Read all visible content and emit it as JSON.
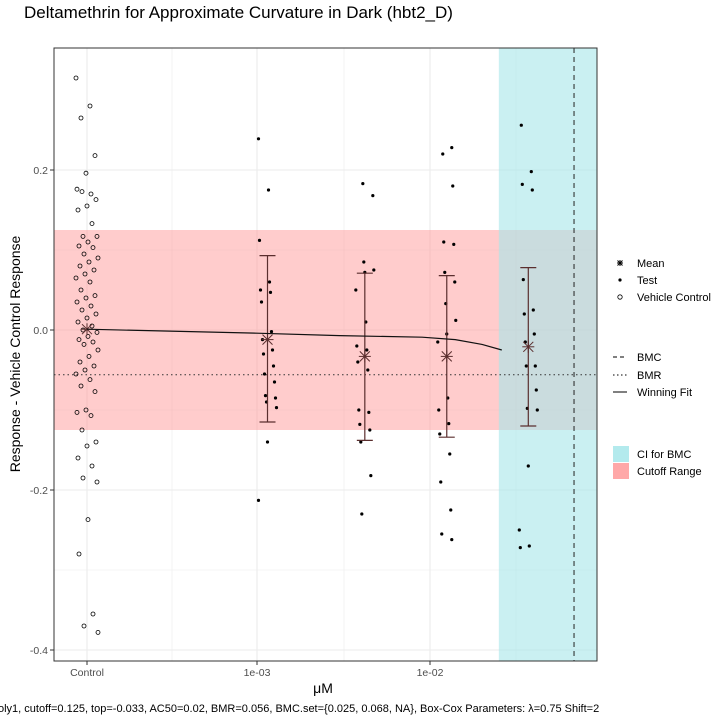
{
  "chart_data": {
    "type": "scatter",
    "title": "Deltamethrin for Approximate Curvature in Dark (hbt2_D)",
    "xlabel": "μM",
    "ylabel": "Response - Vehicle Control Response",
    "caption": "oly1, cutoff=0.125, top=-0.033, AC50=0.02, BMR=0.056, BMC.set={0.025, 0.068, NA}, Box-Cox Parameters: λ=0.75 Shift=2",
    "x_scale": "log10",
    "x_ticks": [
      {
        "label": "Control",
        "value": null
      },
      {
        "label": "1e-03",
        "value": 0.001
      },
      {
        "label": "1e-02",
        "value": 0.01
      }
    ],
    "ylim": [
      -0.41,
      0.35
    ],
    "y_ticks": [
      {
        "label": "0.2",
        "value": 0.2
      },
      {
        "label": "0.0",
        "value": 0.0
      },
      {
        "label": "-0.2",
        "value": -0.2
      },
      {
        "label": "-0.4",
        "value": -0.4
      }
    ],
    "grid": true,
    "cutoff_range": [
      -0.125,
      0.125
    ],
    "bmr_line": -0.056,
    "bmc": 0.068,
    "ci_bmc": [
      0.025,
      0.068
    ],
    "vehicle_control": [
      0.315,
      0.28,
      0.265,
      0.218,
      0.196,
      0.176,
      0.17,
      0.173,
      0.163,
      0.155,
      0.15,
      0.133,
      0.117,
      0.117,
      0.11,
      0.105,
      0.103,
      0.095,
      0.09,
      0.085,
      0.08,
      0.075,
      0.07,
      0.065,
      0.06,
      0.05,
      0.043,
      0.04,
      0.035,
      0.03,
      0.025,
      0.02,
      0.015,
      0.01,
      0.005,
      0.0,
      -0.003,
      -0.008,
      -0.012,
      -0.015,
      -0.018,
      -0.025,
      -0.033,
      -0.04,
      -0.045,
      -0.05,
      -0.055,
      -0.062,
      -0.07,
      -0.077,
      -0.1,
      -0.103,
      -0.107,
      -0.125,
      -0.14,
      -0.145,
      -0.16,
      -0.17,
      -0.185,
      -0.19,
      -0.237,
      -0.28,
      -0.355,
      -0.37,
      -0.378
    ],
    "test_groups": [
      {
        "x": 0.00115,
        "points": [
          0.239,
          0.175,
          0.112,
          0.06,
          0.05,
          0.047,
          0.035,
          -0.002,
          -0.012,
          -0.025,
          -0.03,
          -0.045,
          -0.055,
          -0.065,
          -0.082,
          -0.085,
          -0.09,
          -0.097,
          -0.14,
          -0.213
        ],
        "mean": -0.012,
        "ci": [
          -0.115,
          0.093
        ]
      },
      {
        "x": 0.0042,
        "points": [
          0.183,
          0.168,
          0.085,
          0.075,
          0.072,
          0.05,
          0.01,
          -0.02,
          -0.025,
          -0.04,
          -0.05,
          -0.1,
          -0.103,
          -0.118,
          -0.125,
          -0.14,
          -0.182,
          -0.23
        ],
        "mean": -0.033,
        "ci": [
          -0.138,
          0.071
        ]
      },
      {
        "x": 0.0125,
        "points": [
          0.228,
          0.22,
          0.18,
          0.11,
          0.107,
          0.072,
          0.06,
          0.033,
          0.012,
          -0.005,
          -0.015,
          -0.085,
          -0.1,
          -0.117,
          -0.13,
          -0.155,
          -0.19,
          -0.225,
          -0.255,
          -0.262
        ],
        "mean": -0.033,
        "ci": [
          -0.134,
          0.068
        ]
      },
      {
        "x": 0.037,
        "points": [
          0.256,
          0.198,
          0.182,
          0.175,
          0.063,
          0.025,
          0.02,
          -0.005,
          -0.015,
          -0.045,
          -0.045,
          -0.075,
          -0.098,
          -0.1,
          -0.17,
          -0.25,
          -0.27,
          -0.272
        ],
        "mean": -0.021,
        "ci": [
          -0.12,
          0.078
        ]
      }
    ],
    "winning_fit": [
      {
        "x": "control",
        "y": 0.001
      },
      {
        "x": 0.001,
        "y": -0.004
      },
      {
        "x": 0.003,
        "y": -0.007
      },
      {
        "x": 0.009,
        "y": -0.009
      },
      {
        "x": 0.014,
        "y": -0.012
      },
      {
        "x": 0.02,
        "y": -0.018
      },
      {
        "x": 0.026,
        "y": -0.025
      }
    ],
    "legend": {
      "placement": "right",
      "symbols": [
        {
          "label": "Mean",
          "icon": "asterisk-icon"
        },
        {
          "label": "Test",
          "icon": "filled-dot-icon"
        },
        {
          "label": "Vehicle Control",
          "icon": "open-circle-icon"
        }
      ],
      "lines": [
        {
          "label": "BMC",
          "style": "dashed"
        },
        {
          "label": "BMR",
          "style": "dotted"
        },
        {
          "label": "Winning Fit",
          "style": "solid"
        }
      ],
      "fills": [
        {
          "label": "CI for BMC",
          "color": "#a6e6ea"
        },
        {
          "label": "Cutoff Range",
          "color": "#ff9999"
        }
      ]
    },
    "colors": {
      "cutoff_fill": "#ff9999",
      "ci_fill": "#a6e6ea",
      "panel_border": "#333333",
      "grid": "#ebebeb",
      "points": "#000000",
      "mean_marker": "#5a2e2e"
    }
  }
}
